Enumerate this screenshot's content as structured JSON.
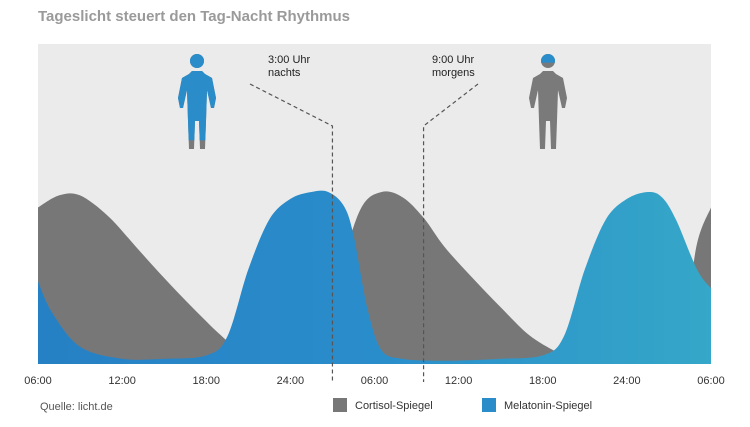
{
  "title": "Tageslicht steuert den Tag-Nacht Rhythmus",
  "chart_data": {
    "type": "area",
    "x_unit": "hours",
    "xlim": [
      0,
      48
    ],
    "ylim": [
      0,
      1
    ],
    "x_ticks": [
      {
        "x": 0,
        "label": "06:00"
      },
      {
        "x": 6,
        "label": "12:00"
      },
      {
        "x": 12,
        "label": "18:00"
      },
      {
        "x": 18,
        "label": "24:00"
      },
      {
        "x": 24,
        "label": "06:00"
      },
      {
        "x": 30,
        "label": "12:00"
      },
      {
        "x": 36,
        "label": "18:00"
      },
      {
        "x": 42,
        "label": "24:00"
      },
      {
        "x": 48,
        "label": "06:00"
      }
    ],
    "series": [
      {
        "name": "Cortisol-Spiegel",
        "color": "#777778",
        "x": [
          0,
          1.5,
          3,
          5,
          7,
          9,
          11,
          13,
          14.5,
          16,
          18,
          20,
          21.5,
          23,
          24.5,
          26,
          27.5,
          29,
          31,
          33,
          35,
          37,
          38.5,
          40,
          42,
          44,
          46,
          47,
          48
        ],
        "y": [
          0.91,
          0.98,
          0.98,
          0.86,
          0.68,
          0.5,
          0.33,
          0.17,
          0.07,
          0.03,
          0.02,
          0.06,
          0.52,
          0.9,
          1.0,
          0.97,
          0.85,
          0.68,
          0.5,
          0.33,
          0.17,
          0.07,
          0.03,
          0.02,
          0.02,
          0.03,
          0.22,
          0.7,
          0.91
        ]
      },
      {
        "name": "Melatonin-Spiegel",
        "color": "#2a8cc8",
        "x": [
          0,
          1,
          3,
          6,
          9,
          12,
          13.5,
          15,
          16.5,
          18,
          19.5,
          20.7,
          21.8,
          22.5,
          23.5,
          24.5,
          26,
          28,
          30,
          33,
          36,
          37.5,
          39,
          40.5,
          42,
          43.5,
          44.5,
          45.5,
          47,
          48
        ],
        "y": [
          0.48,
          0.3,
          0.1,
          0.03,
          0.03,
          0.05,
          0.16,
          0.55,
          0.84,
          0.96,
          1.0,
          1.0,
          0.92,
          0.75,
          0.32,
          0.08,
          0.03,
          0.02,
          0.02,
          0.03,
          0.05,
          0.16,
          0.55,
          0.84,
          0.96,
          1.0,
          0.97,
          0.84,
          0.55,
          0.44
        ]
      }
    ],
    "annotations": [
      {
        "x": 21,
        "lines": [
          "3:00 Uhr",
          "nachts"
        ]
      },
      {
        "x": 27.5,
        "lines": [
          "9:00 Uhr",
          "morgens"
        ]
      }
    ],
    "figures": [
      {
        "name": "sleeping-person",
        "melatonin_fill": 0.9
      },
      {
        "name": "awake-person",
        "melatonin_fill": 0.1
      }
    ],
    "legend": [
      {
        "name": "Cortisol-Spiegel",
        "color": "#777778"
      },
      {
        "name": "Melatonin-Spiegel",
        "color": "#2a8cc8"
      }
    ],
    "legend_placement": "bottom-right",
    "background_color": "#ebebeb"
  },
  "source": "Quelle: licht.de"
}
